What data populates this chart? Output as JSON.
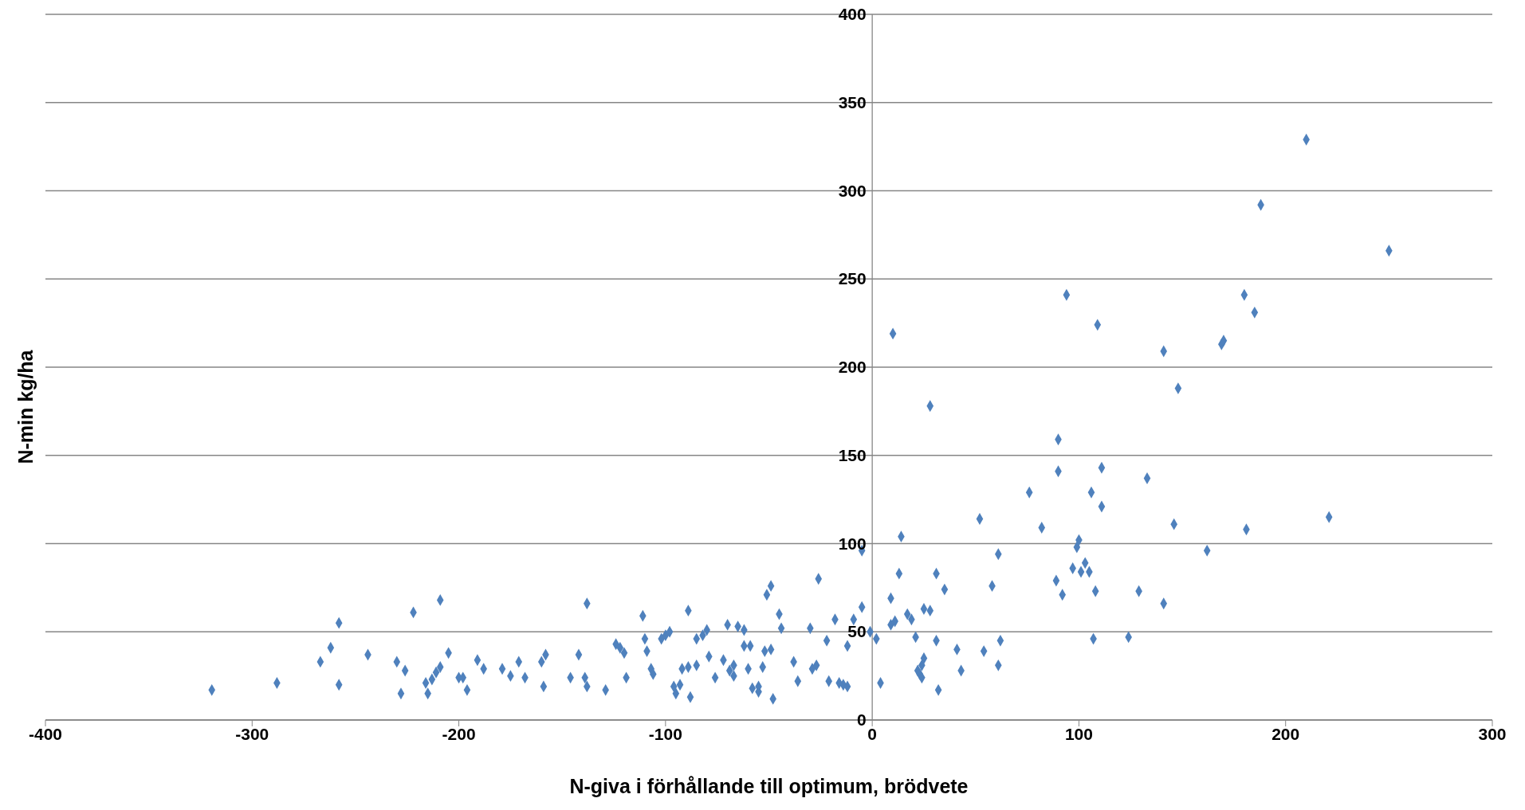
{
  "chart_data": {
    "type": "scatter",
    "xlabel": "N-giva i förhållande till optimum, brödvete",
    "ylabel": "N-min kg/ha",
    "xlim": [
      -400,
      300
    ],
    "xticks": [
      -400,
      -300,
      -200,
      -100,
      0,
      100,
      200,
      300
    ],
    "ylim": [
      0,
      400
    ],
    "yticks": [
      0,
      50,
      100,
      150,
      200,
      250,
      300,
      350,
      400
    ],
    "grid": "y",
    "marker": "diamond",
    "series": [
      {
        "color": "#4f81bd",
        "x": [
          -319.5,
          -288,
          -267,
          -262,
          -258,
          -258,
          -244,
          -230,
          -226,
          -228,
          -222,
          -216,
          -215,
          -213,
          -211,
          -209,
          -209,
          -205,
          -200,
          -198,
          -196,
          -191,
          -188,
          -179,
          -175,
          -171,
          -168,
          -160,
          -159,
          -158,
          -146,
          -142,
          -139,
          -138,
          -138,
          -129,
          -124,
          -122,
          -120,
          -119,
          -111,
          -110,
          -109,
          -107,
          -106,
          -102,
          -100,
          -98,
          -96,
          -95,
          -93,
          -92,
          -89,
          -89,
          -88,
          -85,
          -85,
          -82,
          -80,
          -79,
          -76,
          -72,
          -70,
          -69,
          -67,
          -67,
          -65,
          -62,
          -62,
          -60,
          -59,
          -58,
          -55,
          -55,
          -53,
          -52,
          -51,
          -49,
          -49,
          -48,
          -45,
          -44,
          -38,
          -36,
          -30,
          -29,
          -27,
          -26,
          -22,
          -21,
          -18,
          -16,
          -14,
          -12,
          -12,
          -9,
          -5,
          -5,
          -1,
          2,
          4,
          10,
          9,
          9,
          11,
          13,
          14,
          17,
          19,
          21,
          22,
          23,
          24,
          24,
          25,
          25,
          28,
          28,
          31,
          31,
          32,
          35,
          41,
          43,
          52,
          54,
          58,
          61,
          61,
          62,
          76,
          82,
          89,
          90,
          90,
          92,
          94,
          97,
          99,
          100,
          101,
          103,
          105,
          106,
          107,
          108,
          109,
          111,
          111,
          129,
          133,
          124,
          141,
          141,
          146,
          148,
          162,
          169,
          170,
          180,
          181,
          185,
          188,
          210,
          221,
          250
        ],
        "values": [
          17,
          21,
          33,
          41,
          55,
          20,
          37,
          33,
          28,
          15,
          61,
          21,
          15,
          23,
          27,
          30,
          68,
          38,
          24,
          24,
          17,
          34,
          29,
          29,
          25,
          33,
          24,
          33,
          19,
          37,
          24,
          37,
          24,
          19,
          66,
          17,
          43,
          41,
          38,
          24,
          59,
          46,
          39,
          29,
          26,
          46,
          48,
          50,
          19,
          15,
          20,
          29,
          62,
          30,
          13,
          31,
          46,
          48,
          51,
          36,
          24,
          34,
          54,
          28,
          31,
          25,
          53,
          51,
          42,
          29,
          42,
          18,
          16,
          19,
          30,
          39,
          71,
          40,
          76,
          12,
          60,
          52,
          33,
          22,
          52,
          29,
          31,
          80,
          45,
          22,
          57,
          21,
          20,
          19,
          42,
          57,
          96,
          64,
          50,
          46,
          21,
          219,
          69,
          54,
          56,
          83,
          104,
          60,
          57,
          47,
          28,
          26,
          24,
          31,
          63,
          35,
          62,
          178,
          83,
          45,
          17,
          74,
          40,
          28,
          114,
          39,
          76,
          31,
          94,
          45,
          129,
          109,
          79,
          141,
          159,
          71,
          241,
          86,
          98,
          102,
          84,
          89,
          84,
          129,
          46,
          73,
          224,
          121,
          143,
          73,
          137,
          47,
          209,
          66,
          111,
          188,
          96,
          213,
          215,
          241,
          108,
          231,
          292,
          329,
          115,
          266
        ]
      }
    ]
  }
}
